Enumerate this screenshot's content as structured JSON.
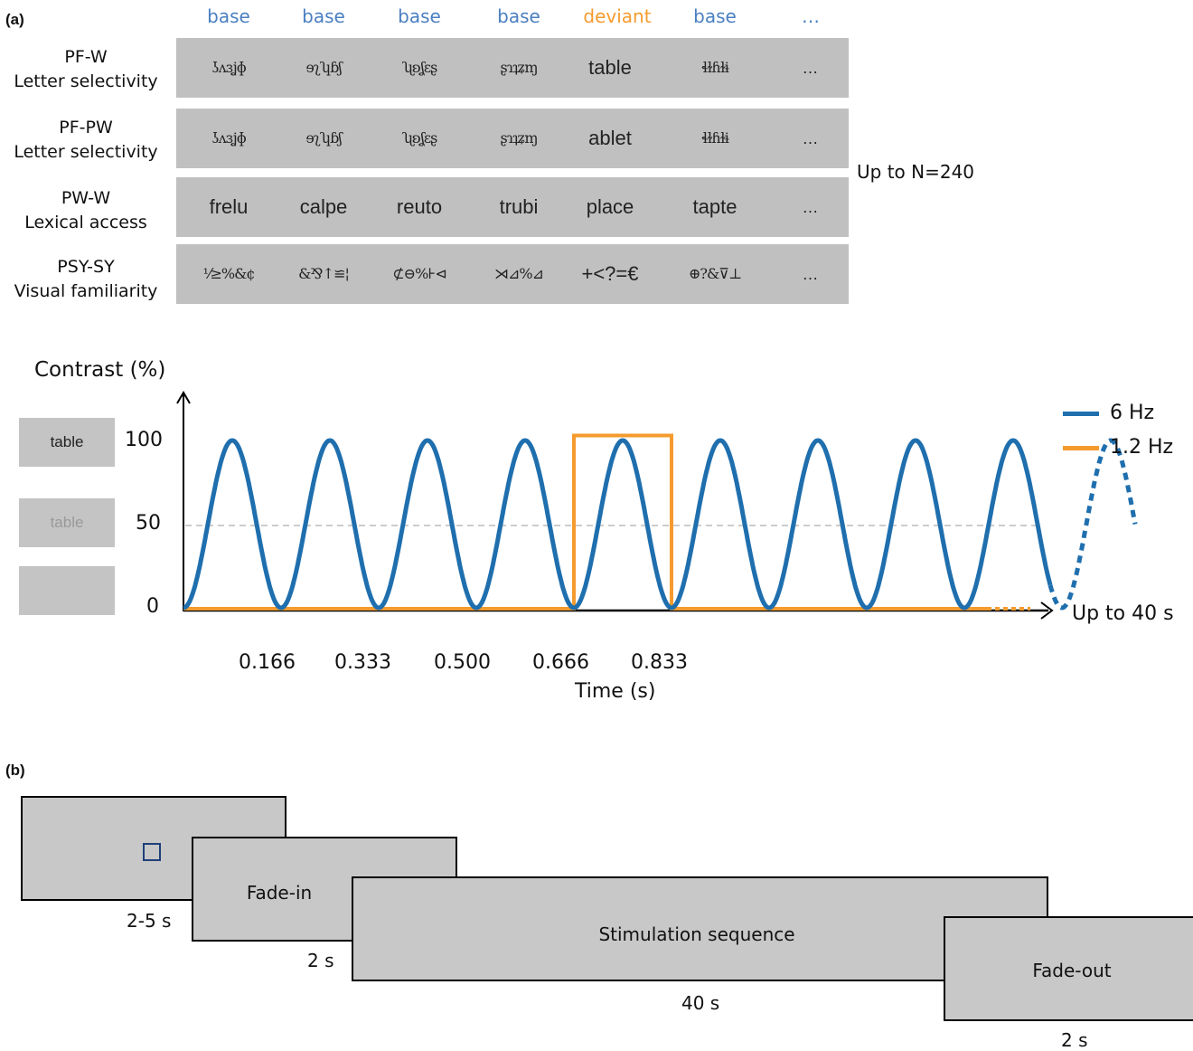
{
  "panel_a": {
    "label": "(a)",
    "column_headers": [
      {
        "text": "base",
        "color": "#4a7fc1"
      },
      {
        "text": "base",
        "color": "#4a7fc1"
      },
      {
        "text": "base",
        "color": "#4a7fc1"
      },
      {
        "text": "base",
        "color": "#4a7fc1"
      },
      {
        "text": "deviant",
        "color": "#f59b2e"
      },
      {
        "text": "base",
        "color": "#4a7fc1"
      },
      {
        "text": "…",
        "color": "#4a7fc1"
      }
    ],
    "rows": [
      {
        "title": "PF-W",
        "subtitle": "Letter selectivity",
        "cells": [
          "ʖʌɜʝɸ",
          "ɘʅʮɓʃ",
          "ʯʚʆɛʂ",
          "ʂɿʇʑɱ",
          "table",
          "ɬɫɦɫɨ",
          "…"
        ],
        "glyph": [
          true,
          true,
          true,
          true,
          false,
          true,
          false
        ]
      },
      {
        "title": "PF-PW",
        "subtitle": "Letter selectivity",
        "cells": [
          "ʖʌɜʝɸ",
          "ɘʅʮɓʃ",
          "ʯʚʆɛʂ",
          "ʂɿʇʑɱ",
          "ablet",
          "ɬɫɦɫɨ",
          "…"
        ],
        "glyph": [
          true,
          true,
          true,
          true,
          false,
          true,
          false
        ]
      },
      {
        "title": "PW-W",
        "subtitle": "Lexical access",
        "cells": [
          "frelu",
          "calpe",
          "reuto",
          "trubi",
          "place",
          "tapte",
          "…"
        ],
        "glyph": [
          false,
          false,
          false,
          false,
          false,
          false,
          false
        ]
      },
      {
        "title": "PSY-SY",
        "subtitle": "Visual familiarity",
        "cells": [
          "⅟≥%&¢",
          "&⅋↑≌¦",
          "⊄⊖%⊦⊲",
          "⋊⊿%⊿",
          "+<?=€",
          "⊕?&⊽⊥",
          "…"
        ],
        "glyph": [
          true,
          true,
          true,
          true,
          false,
          true,
          false
        ]
      }
    ],
    "n_label": "Up to N=240"
  },
  "contrast_plot": {
    "ylabel": "Contrast (%)",
    "yticks": [
      "100",
      "50",
      "0"
    ],
    "xticks": [
      "0.166",
      "0.333",
      "0.500",
      "0.666",
      "0.833"
    ],
    "xlabel": "Time (s)",
    "x_end_label": "Up to 40 s",
    "side_boxes": [
      "table",
      "table",
      ""
    ],
    "legend": [
      {
        "label": "6 Hz",
        "color": "#1f6fae"
      },
      {
        "label": "1.2 Hz",
        "color": "#f59b2e"
      }
    ],
    "base_cycles": 9,
    "deviant_cycle": 5,
    "gridline_level": 50
  },
  "panel_b": {
    "label": "(b)",
    "screens": [
      {
        "text": "",
        "duration": "2-5 s"
      },
      {
        "text": "Fade-in",
        "duration": "2 s"
      },
      {
        "text": "Stimulation sequence",
        "duration": "40 s"
      },
      {
        "text": "Fade-out",
        "duration": "2 s"
      }
    ],
    "fixation_color": "#1f3f7a"
  }
}
